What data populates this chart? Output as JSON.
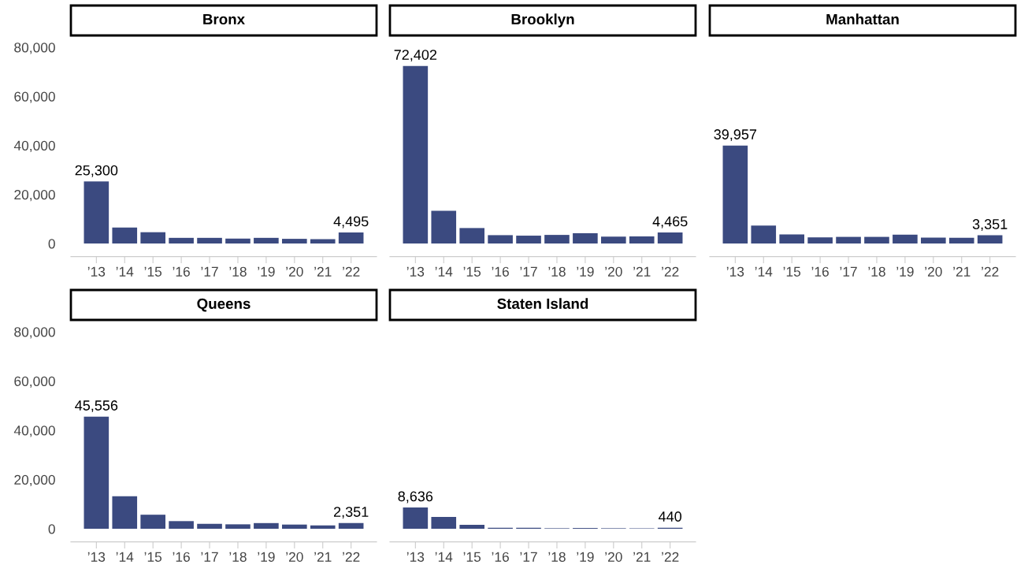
{
  "chart_data": [
    {
      "type": "bar",
      "title": "Bronx",
      "categories": [
        "’13",
        "’14",
        "’15",
        "’16",
        "’17",
        "’18",
        "’19",
        "’20",
        "’21",
        "’22"
      ],
      "color": "#3b4a80",
      "values": [
        25300,
        6500,
        4600,
        2300,
        2300,
        2000,
        2300,
        1900,
        1800,
        4495
      ],
      "value_labels": [
        "25,300",
        null,
        null,
        null,
        null,
        null,
        null,
        null,
        null,
        "4,495"
      ],
      "ylim": [
        0,
        80000
      ],
      "yticks": [
        0,
        {
          "value": 20000,
          "label": "20,000"
        },
        {
          "value": 40000,
          "label": "40,000"
        },
        {
          "value": 60000,
          "label": "60,000"
        },
        {
          "value": 80000,
          "label": "80,000"
        }
      ],
      "grid": false
    },
    {
      "type": "bar",
      "title": "Brooklyn",
      "categories": [
        "’13",
        "’14",
        "’15",
        "’16",
        "’17",
        "’18",
        "’19",
        "’20",
        "’21",
        "’22"
      ],
      "color": "#3b4a80",
      "values": [
        72402,
        13300,
        6300,
        3400,
        3200,
        3500,
        4200,
        2800,
        2900,
        4465
      ],
      "value_labels": [
        "72,402",
        null,
        null,
        null,
        null,
        null,
        null,
        null,
        null,
        "4,465"
      ],
      "ylim": [
        0,
        80000
      ],
      "tick_labels": "x",
      "grid": false
    },
    {
      "type": "bar",
      "title": "Manhattan",
      "categories": [
        "’13",
        "’14",
        "’15",
        "’16",
        "’17",
        "’18",
        "’19",
        "’20",
        "’21",
        "’22"
      ],
      "color": "#3b4a80",
      "values": [
        39957,
        7300,
        3700,
        2500,
        2700,
        2700,
        3600,
        2400,
        2300,
        3351
      ],
      "value_labels": [
        "39,957",
        null,
        null,
        null,
        null,
        null,
        null,
        null,
        null,
        "3,351"
      ],
      "ylim": [
        0,
        80000
      ],
      "tick_labels": "x",
      "grid": false
    },
    {
      "type": "bar",
      "title": "Queens",
      "categories": [
        "’13",
        "’14",
        "’15",
        "’16",
        "’17",
        "’18",
        "’19",
        "’20",
        "’21",
        "’22"
      ],
      "color": "#3b4a80",
      "values": [
        45556,
        13200,
        5700,
        3100,
        2000,
        1800,
        2300,
        1700,
        1400,
        2351
      ],
      "value_labels": [
        "45,556",
        null,
        null,
        null,
        null,
        null,
        null,
        null,
        null,
        "2,351"
      ],
      "ylim": [
        0,
        80000
      ],
      "yticks": [
        0,
        {
          "value": 20000,
          "label": "20,000"
        },
        {
          "value": 40000,
          "label": "40,000"
        },
        {
          "value": 60000,
          "label": "60,000"
        },
        {
          "value": 80000,
          "label": "80,000"
        }
      ],
      "grid": false
    },
    {
      "type": "bar",
      "title": "Staten Island",
      "categories": [
        "’13",
        "’14",
        "’15",
        "’16",
        "’17",
        "’18",
        "’19",
        "’20",
        "’21",
        "’22"
      ],
      "color": "#3b4a80",
      "values": [
        8636,
        4800,
        1600,
        400,
        400,
        200,
        300,
        200,
        200,
        440
      ],
      "value_labels": [
        "8,636",
        null,
        null,
        null,
        null,
        null,
        null,
        null,
        null,
        "440"
      ],
      "ylim": [
        0,
        80000
      ],
      "tick_labels": "x",
      "grid": false
    }
  ]
}
